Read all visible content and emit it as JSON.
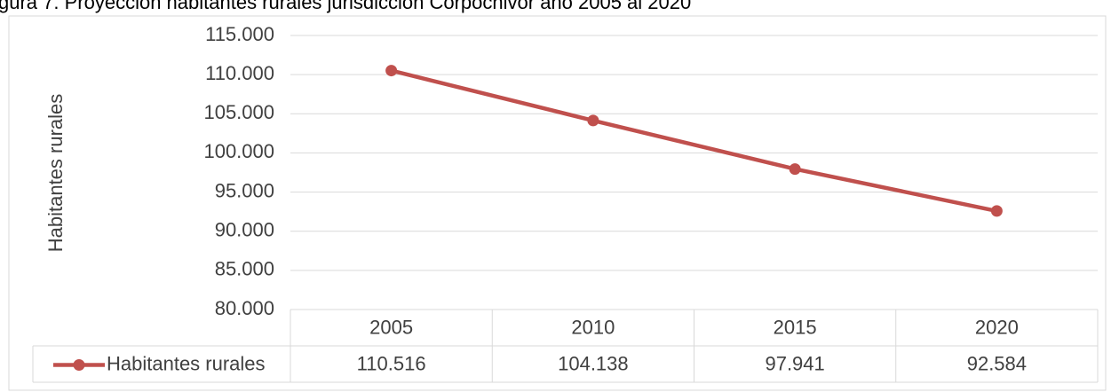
{
  "chart_data": {
    "type": "line",
    "title": "gura 7. Proyección habitantes rurales jurisdicción Corpochivor año 2005 al 2020",
    "y_label": "Habitantes rurales",
    "categories": [
      "2005",
      "2010",
      "2015",
      "2020"
    ],
    "series": [
      {
        "name": "Habitantes rurales",
        "color": "#c0504d",
        "values": [
          110516,
          104138,
          97941,
          92584
        ],
        "value_labels": [
          "110.516",
          "104.138",
          "97.941",
          "92.584"
        ]
      }
    ],
    "ylim": [
      80000,
      115000
    ],
    "yticks": [
      {
        "value": 80000,
        "label": "80.000"
      },
      {
        "value": 85000,
        "label": "85.000"
      },
      {
        "value": 90000,
        "label": "90.000"
      },
      {
        "value": 95000,
        "label": "95.000"
      },
      {
        "value": 100000,
        "label": "100.000"
      },
      {
        "value": 105000,
        "label": "105.000"
      },
      {
        "value": 110000,
        "label": "110.000"
      },
      {
        "value": 115000,
        "label": "115.000"
      }
    ],
    "grid": true,
    "data_table": true
  }
}
